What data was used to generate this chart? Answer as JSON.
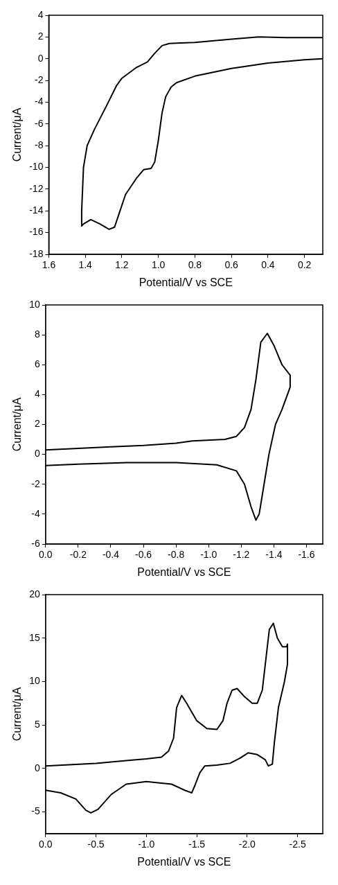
{
  "chart_data": [
    {
      "type": "line",
      "xlabel": "Potential/V vs SCE",
      "ylabel": "Current/μA",
      "xlim": [
        1.6,
        0.1
      ],
      "ylim": [
        -18,
        4
      ],
      "xticks": [
        1.6,
        1.4,
        1.2,
        {
          "value": 1,
          "label": "1.0"
        },
        0.8,
        0.6,
        0.4,
        0.2
      ],
      "yticks": [
        -18,
        -16,
        -14,
        -12,
        -10,
        -8,
        -6,
        -4,
        -2,
        0,
        2,
        4
      ],
      "grid": false,
      "legend": false,
      "marker": "none",
      "line_style": "solid",
      "series": [
        {
          "color": "#000000",
          "x": [
            0.1,
            0.2,
            0.4,
            0.6,
            0.8,
            0.9,
            0.93,
            0.96,
            0.98,
            1.0,
            1.02,
            1.04,
            1.08,
            1.12,
            1.18,
            1.22,
            1.24,
            1.27,
            1.32,
            1.37,
            1.41,
            1.42,
            1.42,
            1.41,
            1.39,
            1.35,
            1.28,
            1.23,
            1.2,
            1.12,
            1.06,
            1.02,
            0.98,
            0.94,
            0.8,
            0.6,
            0.45,
            0.3,
            0.1
          ],
          "values": [
            0,
            -0.1,
            -0.4,
            -0.9,
            -1.6,
            -2.2,
            -2.6,
            -3.5,
            -5,
            -7.5,
            -9.5,
            -10.1,
            -10.2,
            -11,
            -12.5,
            -14.5,
            -15.5,
            -15.7,
            -15.2,
            -14.8,
            -15.2,
            -15.4,
            -14,
            -10,
            -8,
            -6.5,
            -4.2,
            -2.5,
            -1.8,
            -0.8,
            -0.3,
            0.5,
            1.2,
            1.4,
            1.5,
            1.8,
            2.0,
            1.95,
            1.95
          ]
        }
      ]
    },
    {
      "type": "line",
      "xlabel": "Potential/V vs SCE",
      "ylabel": "Current/μA",
      "xlim": [
        0,
        -1.7
      ],
      "ylim": [
        -6,
        10
      ],
      "xticks": [
        {
          "value": 0,
          "label": "0.0"
        },
        -0.2,
        -0.4,
        -0.6,
        -0.8,
        {
          "value": -1,
          "label": "-1.0"
        },
        -1.2,
        -1.4,
        -1.6
      ],
      "yticks": [
        -6,
        -4,
        -2,
        0,
        2,
        4,
        6,
        8,
        10
      ],
      "grid": false,
      "legend": false,
      "marker": "none",
      "line_style": "solid",
      "series": [
        {
          "color": "#000000",
          "x": [
            0,
            -0.2,
            -0.4,
            -0.6,
            -0.8,
            -0.9,
            -1.1,
            -1.17,
            -1.22,
            -1.26,
            -1.29,
            -1.32,
            -1.36,
            -1.4,
            -1.45,
            -1.5,
            -1.5,
            -1.45,
            -1.41,
            -1.37,
            -1.34,
            -1.31,
            -1.29,
            -1.26,
            -1.22,
            -1.17,
            -1.05,
            -0.8,
            -0.5,
            -0.2,
            0
          ],
          "values": [
            0.3,
            0.4,
            0.5,
            0.6,
            0.75,
            0.9,
            1.0,
            1.2,
            1.8,
            3,
            5,
            7.5,
            8.1,
            7.3,
            6,
            5.3,
            4.5,
            3,
            2,
            0,
            -2,
            -4,
            -4.4,
            -3.5,
            -2,
            -1.1,
            -0.7,
            -0.55,
            -0.55,
            -0.65,
            -0.75
          ]
        }
      ]
    },
    {
      "type": "line",
      "xlabel": "Potential/V vs SCE",
      "ylabel": "Current/μA",
      "xlim": [
        0,
        -2.75
      ],
      "ylim": [
        -7.5,
        20
      ],
      "xticks": [
        {
          "value": 0,
          "label": "0.0"
        },
        -0.5,
        {
          "value": -1,
          "label": "-1.0"
        },
        -1.5,
        {
          "value": -2,
          "label": "-2.0"
        },
        -2.5
      ],
      "yticks": [
        -5,
        0,
        5,
        10,
        15,
        20
      ],
      "grid": false,
      "legend": false,
      "marker": "none",
      "line_style": "solid",
      "series": [
        {
          "color": "#000000",
          "x": [
            0,
            -0.5,
            -0.8,
            -1.0,
            -1.15,
            -1.22,
            -1.27,
            -1.3,
            -1.35,
            -1.4,
            -1.5,
            -1.6,
            -1.7,
            -1.76,
            -1.8,
            -1.85,
            -1.9,
            -1.97,
            -2.05,
            -2.1,
            -2.15,
            -2.18,
            -2.22,
            -2.26,
            -2.3,
            -2.35,
            -2.39,
            -2.4,
            -2.4,
            -2.37,
            -2.31,
            -2.27,
            -2.25,
            -2.21,
            -2.18,
            -2.1,
            -2.01,
            -1.93,
            -1.83,
            -1.7,
            -1.58,
            -1.53,
            -1.48,
            -1.45,
            -1.38,
            -1.25,
            -1.0,
            -0.8,
            -0.65,
            -0.52,
            -0.45,
            -0.4,
            -0.3,
            -0.15,
            0
          ],
          "values": [
            0.3,
            0.6,
            0.9,
            1.1,
            1.3,
            2,
            3.5,
            7,
            8.4,
            7.5,
            5.5,
            4.6,
            4.5,
            5.5,
            7.5,
            9,
            9.2,
            8.3,
            7.5,
            7.5,
            9,
            12,
            16,
            16.7,
            15,
            14,
            14,
            14.3,
            12,
            10,
            7,
            3,
            0.5,
            0.3,
            1,
            1.6,
            1.8,
            1.2,
            0.6,
            0.4,
            0.3,
            -0.5,
            -2,
            -2.8,
            -2.5,
            -1.8,
            -1.5,
            -1.8,
            -3,
            -4.7,
            -5.1,
            -4.8,
            -3.5,
            -2.8,
            -2.5
          ]
        }
      ]
    }
  ]
}
